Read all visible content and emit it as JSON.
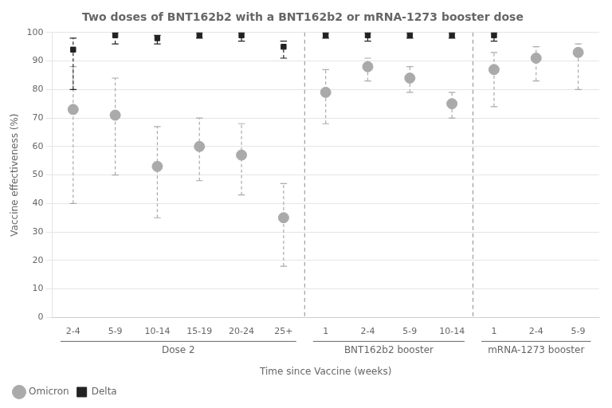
{
  "chart_data": {
    "type": "scatter",
    "title": "Two doses of BNT162b2 with a BNT162b2 or mRNA-1273 booster dose",
    "ylabel": "Vaccine effectiveness (%)",
    "xlabel": "Time since Vaccine (weeks)",
    "groups": [
      {
        "label": "Dose 2",
        "categories": [
          "2-4",
          "5-9",
          "10-14",
          "15-19",
          "20-24",
          "25+"
        ]
      },
      {
        "label": "BNT162b2 booster",
        "categories": [
          "1",
          "2-4",
          "5-9",
          "10-14"
        ]
      },
      {
        "label": "mRNA-1273 booster",
        "categories": [
          "1",
          "2-4",
          "5-9"
        ]
      }
    ],
    "series": [
      {
        "name": "Omicron",
        "color": "#aaaaaa",
        "marker": "circle",
        "values": [
          73,
          71,
          53,
          60,
          57,
          35,
          79,
          88,
          84,
          75,
          87,
          91,
          93
        ],
        "lo": [
          40,
          50,
          35,
          48,
          43,
          18,
          68,
          83,
          79,
          70,
          74,
          83,
          80
        ],
        "hi": [
          88,
          84,
          67,
          70,
          68,
          47,
          87,
          91,
          88,
          79,
          93,
          95,
          96
        ]
      },
      {
        "name": "Delta",
        "color": "#222222",
        "marker": "square",
        "values": [
          94,
          99,
          98,
          99,
          99,
          95,
          99,
          99,
          99,
          99,
          99,
          null,
          null
        ],
        "lo": [
          80,
          96,
          96,
          98,
          97,
          91,
          98,
          97,
          98,
          98,
          97,
          null,
          null
        ],
        "hi": [
          98,
          100,
          99,
          100,
          100,
          97,
          100,
          100,
          100,
          100,
          100,
          null,
          null
        ]
      }
    ],
    "ylim": [
      0,
      100
    ],
    "yticks": [
      0,
      10,
      20,
      30,
      40,
      50,
      60,
      70,
      80,
      90,
      100
    ],
    "grid": true,
    "legend": "lower left"
  }
}
